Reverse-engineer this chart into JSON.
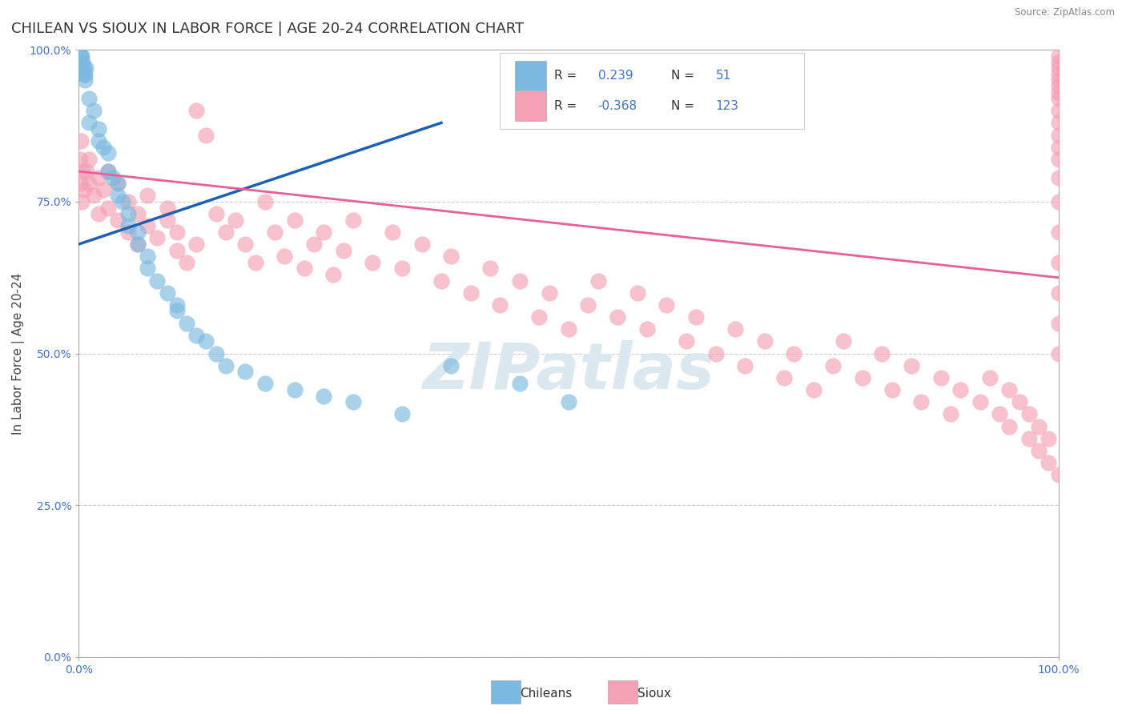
{
  "title": "CHILEAN VS SIOUX IN LABOR FORCE | AGE 20-24 CORRELATION CHART",
  "source": "Source: ZipAtlas.com",
  "ylabel": "In Labor Force | Age 20-24",
  "xlim": [
    0.0,
    1.0
  ],
  "ylim": [
    0.0,
    1.0
  ],
  "x_tick_labels": [
    "0.0%",
    "100.0%"
  ],
  "y_tick_labels": [
    "0.0%",
    "25.0%",
    "50.0%",
    "75.0%",
    "100.0%"
  ],
  "y_tick_values": [
    0.0,
    0.25,
    0.5,
    0.75,
    1.0
  ],
  "chilean_R": 0.239,
  "chilean_N": 51,
  "sioux_R": -0.368,
  "sioux_N": 123,
  "chilean_color": "#7cb9e0",
  "sioux_color": "#f4a0b5",
  "chilean_line_color": "#2060b0",
  "sioux_line_color": "#e8609a",
  "background_color": "#ffffff",
  "grid_color": "#cccccc",
  "watermark": "ZIPatlas",
  "watermark_color": "#dce8f0",
  "title_fontsize": 13,
  "axis_label_fontsize": 11,
  "tick_fontsize": 10,
  "legend_text_color": "#4472c4",
  "chilean_line_x": [
    0.0,
    0.37
  ],
  "chilean_line_y": [
    0.68,
    0.88
  ],
  "sioux_line_x": [
    0.0,
    1.0
  ],
  "sioux_line_y": [
    0.8,
    0.625
  ]
}
